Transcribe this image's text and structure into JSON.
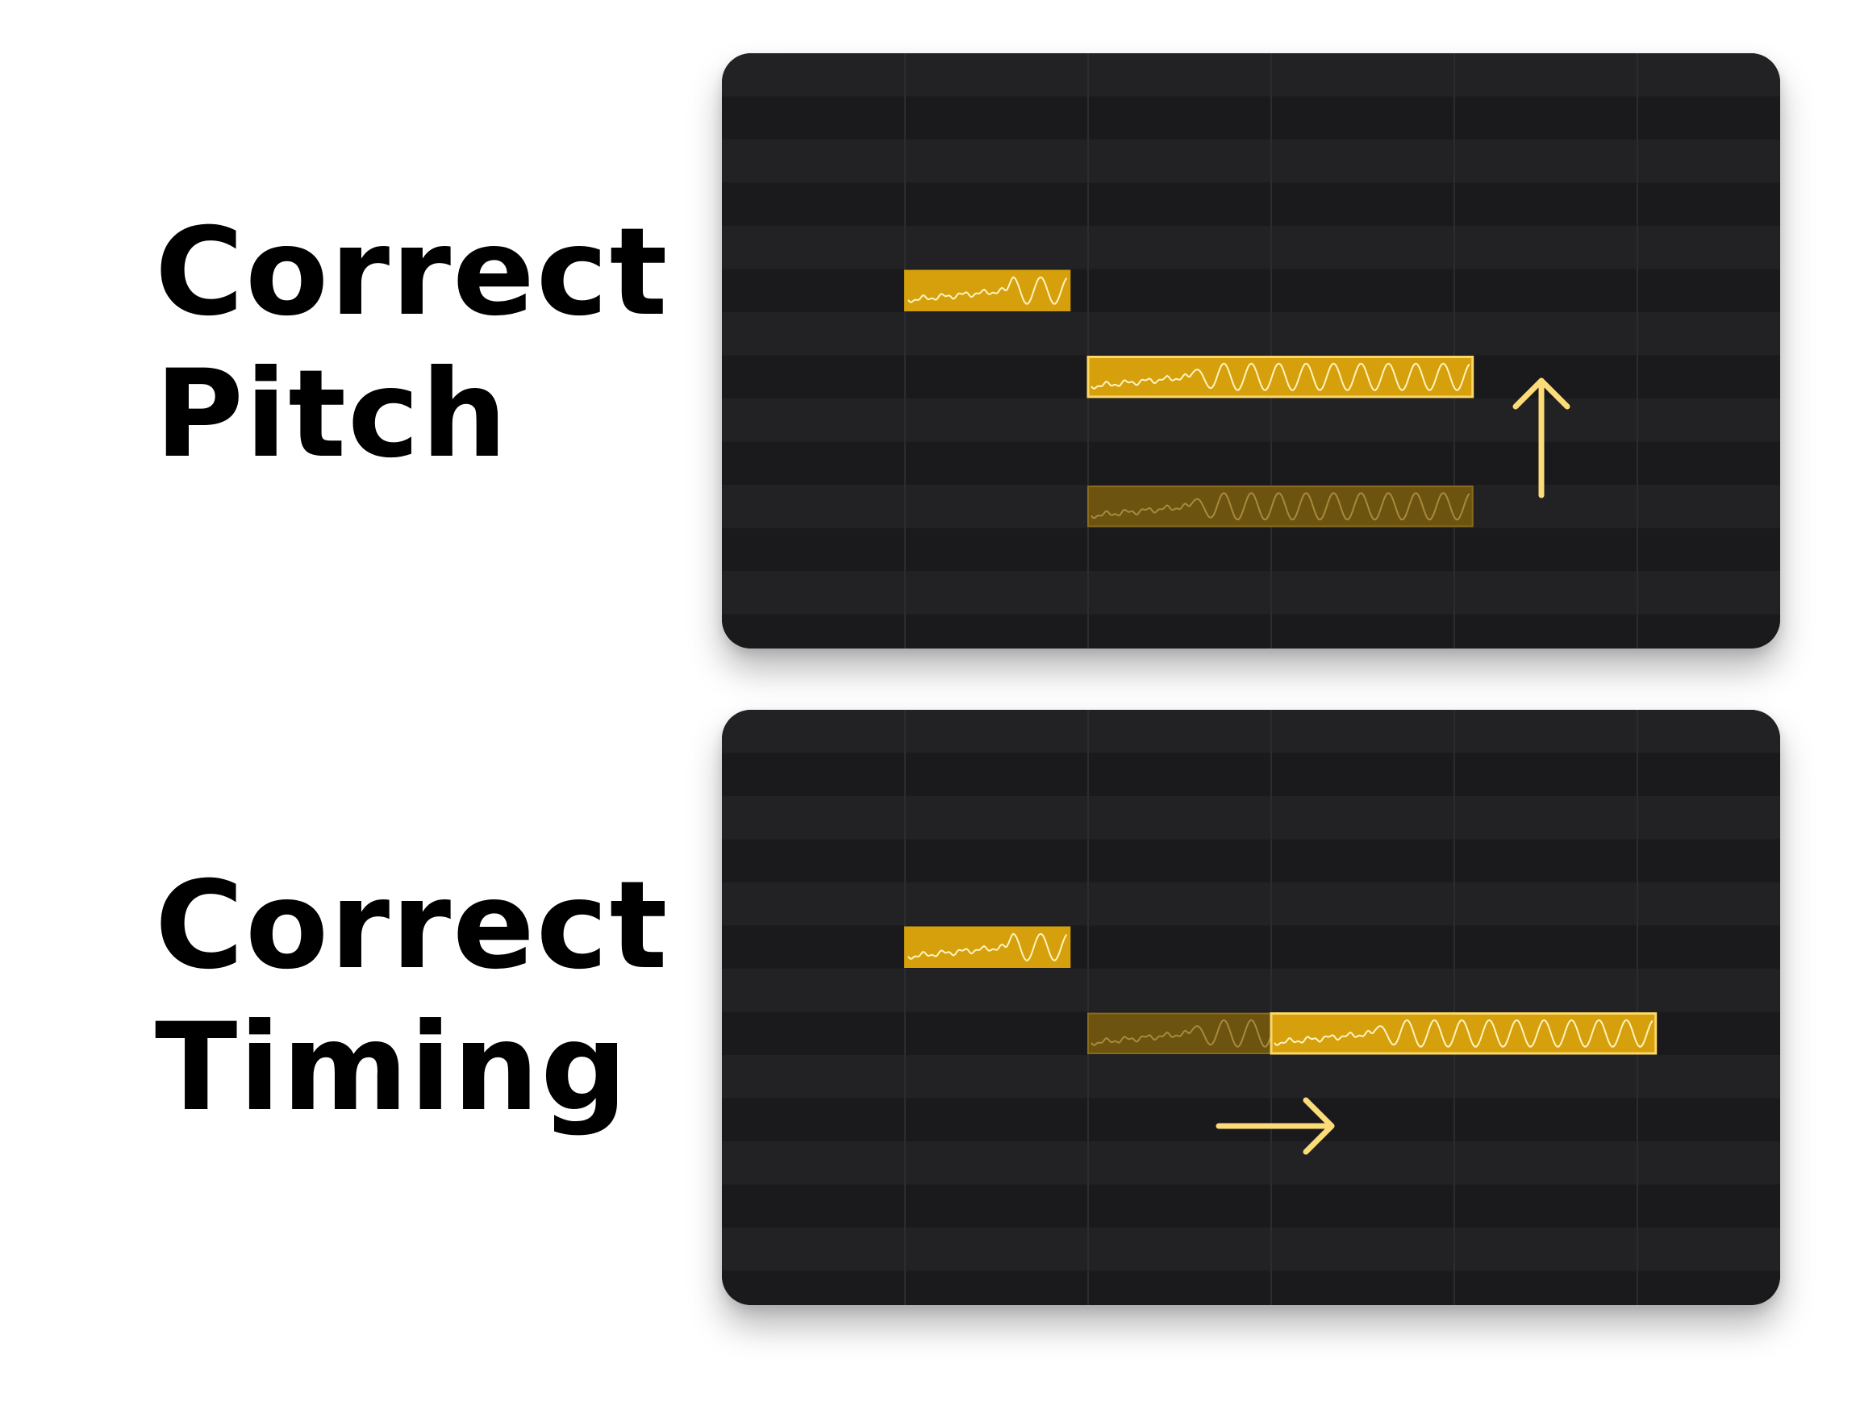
{
  "labels": {
    "pitch": {
      "line1": "Correct",
      "line2": "Pitch"
    },
    "timing": {
      "line1": "Correct",
      "line2": "Timing"
    }
  },
  "colors": {
    "page_background": "#ffffff",
    "label_text": "#000000",
    "panel_background": "#1a1a1c",
    "lane_dark": "#1a1a1c",
    "lane_light": "#222224",
    "grid_line": "#2c2c2f",
    "note_fill": "#d5a00b",
    "note_border": "#fcd766",
    "note_waveform": "#fff3c0",
    "ghost_fill": "#6c5310",
    "ghost_border": "#8a6b1c",
    "ghost_waveform": "#a88a3c",
    "arrow": "#fcdb79"
  },
  "panels": [
    {
      "id": "pitch",
      "correction": "pitch",
      "arrow_icon": "arrow-up-icon",
      "notes": [
        {
          "id": "note-1",
          "state": "normal",
          "start_beat": 1.0,
          "length_beats": 0.9,
          "pitch_row": 5,
          "selected": false
        },
        {
          "id": "note-2",
          "state": "corrected",
          "start_beat": 2.0,
          "length_beats": 2.1,
          "pitch_row": 7,
          "selected": true
        },
        {
          "id": "note-2-original",
          "state": "ghost",
          "start_beat": 2.0,
          "length_beats": 2.1,
          "pitch_row": 10,
          "selected": false
        }
      ],
      "shift": {
        "direction": "up",
        "rows": 3
      }
    },
    {
      "id": "timing",
      "correction": "timing",
      "arrow_icon": "arrow-right-icon",
      "notes": [
        {
          "id": "note-1",
          "state": "normal",
          "start_beat": 1.0,
          "length_beats": 0.9,
          "pitch_row": 5,
          "selected": false
        },
        {
          "id": "note-2-original",
          "state": "ghost",
          "start_beat": 2.0,
          "length_beats": 2.1,
          "pitch_row": 7,
          "selected": false
        },
        {
          "id": "note-2",
          "state": "corrected",
          "start_beat": 3.0,
          "length_beats": 2.1,
          "pitch_row": 7,
          "selected": true
        }
      ],
      "shift": {
        "direction": "right",
        "beats": 1
      }
    }
  ]
}
